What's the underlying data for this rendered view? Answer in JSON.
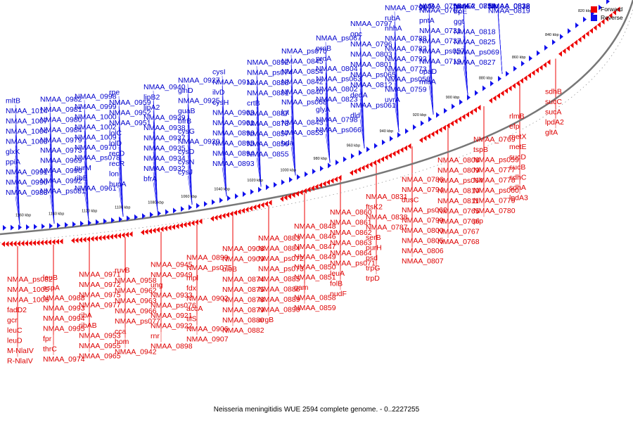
{
  "title": "Neisseria meningitidis WUE 2594 complete genome. - 0..2227255",
  "legend": {
    "items": [
      {
        "label": "Forward",
        "color": "#ee0000"
      },
      {
        "label": "Reverse",
        "color": "#1111ee"
      }
    ]
  },
  "colors": {
    "forward": "#ee0000",
    "reverse": "#1111ee",
    "backbone": "#777777"
  },
  "scale_labels": [
    "1160 kbp",
    "1140 kbp",
    "1120 kbp",
    "1100 kbp",
    "1080 kbp",
    "1060 kbp",
    "1040 kbp",
    "1020 kbp",
    "1000 kbp",
    "980 kbp",
    "960 kbp",
    "940 kbp",
    "920 kbp",
    "900 kbp",
    "880 kbp",
    "860 kbp",
    "840 kbp",
    "820 kbp"
  ],
  "reverse_genes": [
    "mltB",
    "NMAA_1014",
    "NMAA_1007",
    "NMAA_1004",
    "NMAA_1003",
    "glxK",
    "ppiA",
    "NMAA_0991",
    "NMAA_0990",
    "NMAA_0983",
    "NMAA_0982",
    "NMAA_0981",
    "NMAA_0980",
    "NMAA_0984",
    "NMAA_0979",
    "NMAA_0973",
    "NMAA_0969",
    "NMAA_0996",
    "NMAA_0992",
    "NMAA_ps081",
    "NMAA_0998",
    "NMAA_0999",
    "NMAA_1000",
    "NMAA_1002",
    "NMAA_1009",
    "NMAA_0970",
    "NMAA_ps078",
    "purM",
    "ribE",
    "NMAA_0961",
    "rpe",
    "NMAA_0959",
    "NMAA_0952",
    "NMAA_0951",
    "lolC",
    "lolD",
    "recD",
    "recR",
    "lon",
    "hupA",
    "NMAA_0940",
    "lipB2",
    "lipA2",
    "NMAA_0939",
    "NMAA_0938",
    "NMAA_0937",
    "NMAA_0935",
    "NMAA_0934",
    "NMAA_0932",
    "bfrA",
    "NMAA_0927",
    "glnD",
    "NMAA_0925",
    "guaB",
    "bfrB",
    "cysG",
    "NMAA_0920",
    "cysD",
    "cysN",
    "cysJ",
    "cysI",
    "NMAA_0912",
    "ilvD",
    "cysH",
    "NMAA_0903",
    "NMAA_0901",
    "NMAA_0896",
    "NMAA_0895",
    "NMAA_0894",
    "NMAA_0893",
    "NMAA_0892",
    "NMAA_ps074",
    "NMAA_0888",
    "NMAA_0881",
    "crtB",
    "NMAA_0887",
    "NMAA_0873",
    "NMAA_0857",
    "NMAA_0856",
    "NMAA_0855",
    "NMAA_ps070",
    "NMAA_0845",
    "NMAA_0854",
    "NMAA_0842",
    "NMAA_0840",
    "NMAA_ps068",
    "lgt",
    "NMAA_0843",
    "NMAA_0853",
    "hda",
    "NMAA_ps067",
    "proB",
    "proA",
    "NMAA_0804",
    "NMAA_ps063",
    "NMAA_0802",
    "NMAA_0823",
    "glyA",
    "NMAA_0798",
    "NMAA_ps066",
    "NMAA_0797",
    "opc",
    "NMAA_0796",
    "NMAA_0803",
    "NMAA_0801",
    "NMAA_ps065",
    "NMAA_0812",
    "dedA",
    "NMAA_ps061",
    "dld",
    "NMAA_0791",
    "rubA",
    "nhhA",
    "NMAA_0788",
    "NMAA_0782",
    "NMAA_0792",
    "NMAA_0773",
    "NMAA_ps058",
    "NMAA_0759",
    "uvrA",
    "NMAA_0758",
    "pntB",
    "NMAA_0762",
    "pntA",
    "NMAA_0731",
    "NMAA_0737",
    "NMAA_ps057",
    "NMAA_0719",
    "opaD",
    "miaA",
    "rpmE2",
    "NMAA_0757",
    "NMAA_0814",
    "purK",
    "trpE",
    "ggt",
    "NMAA_0818",
    "NMAA_0825",
    "NMAA_ps069",
    "NMAA_0827",
    "NMAA_0828",
    "fbp",
    "NMAA_0832",
    "NMAA_0833",
    "NMAA_0813",
    "NMAA_0816",
    "NMAA_0819"
  ],
  "forward_genes": [
    "NMAA_ps082",
    "NMAA_1005",
    "NMAA_1006",
    "fadD2",
    "gcr",
    "leuC",
    "leuD",
    "M-NlaIV",
    "R-NlaIV",
    "leuB",
    "aspA",
    "NMAA_0988",
    "NMAA_0993",
    "NMAA_0994",
    "NMAA_0995",
    "fpr",
    "thrC",
    "NMAA_0974",
    "NMAA_0971",
    "NMAA_0972",
    "NMAA_0975",
    "NMAA_0977",
    "ribA",
    "ribAB",
    "NMAA_0953",
    "NMAA_0955",
    "NMAA_0965",
    "ruvB",
    "NMAA_0958",
    "NMAA_0962",
    "NMAA_0963",
    "NMAA_0966",
    "NMAA_ps077",
    "cca",
    "hom",
    "NMAA_0942",
    "NMAA_0945",
    "NMAA_0949",
    "ung",
    "NMAA_0933",
    "NMAA_ps076",
    "NMAA_0921",
    "NMAA_0922",
    "rnr",
    "NMAA_0898",
    "NMAA_0899",
    "NMAA_ps075",
    "mpl",
    "fdx",
    "NMAA_0902",
    "accA",
    "tilS",
    "NMAA_0906",
    "NMAA_0907",
    "NMAA_0908",
    "NMAA_0909",
    "bioB",
    "NMAA_0874",
    "NMAA_0875",
    "NMAA_0878",
    "NMAA_0879",
    "NMAA_0880",
    "NMAA_0882",
    "NMAA_0883",
    "NMAA_0884",
    "NMAA_ps072",
    "NMAA_ps073",
    "NMAA_0885",
    "NMAA_0886",
    "NMAA_0889",
    "NMAA_0890",
    "argB",
    "NMAA_0848",
    "NMAA_0846",
    "NMAA_0847",
    "NMAA_0849",
    "NMAA_0850",
    "NMAA_0851",
    "gam",
    "NMAA_0858",
    "NMAA_0859",
    "NMAA_0860",
    "NMAA_0861",
    "NMAA_0862",
    "NMAA_0863",
    "NMAA_0864",
    "NMAA_ps071",
    "leuA",
    "folB",
    "nudF",
    "NMAA_0831",
    "ftsK2",
    "NMAA_0838",
    "NMAA_0787",
    "serB",
    "purH",
    "psd",
    "trpG",
    "trpD",
    "NMAA_0786",
    "NMAA_0794",
    "dusC",
    "NMAA_ps062",
    "NMAA_0799",
    "NMAA_0800",
    "NMAA_0805",
    "NMAA_0806",
    "NMAA_0807",
    "NMAA_0808",
    "NMAA_0809",
    "NMAA_ps064",
    "NMAA_0810",
    "NMAA_0811",
    "NMAA_0765",
    "NMAA_0766",
    "NMAA_0767",
    "NMAA_0768",
    "NMAA_0769",
    "tspB",
    "NMAA_ps059",
    "NMAA_0777",
    "NMAA_0778",
    "NMAA_ps060",
    "NMAA_0779",
    "NMAA_0780",
    "pip",
    "rlmB",
    "efp",
    "metX",
    "metE",
    "sucD",
    "sucB",
    "sdhC",
    "sdhA",
    "lpdA3",
    "sdhB",
    "sucC",
    "sucA",
    "lpdA2",
    "gltA"
  ]
}
